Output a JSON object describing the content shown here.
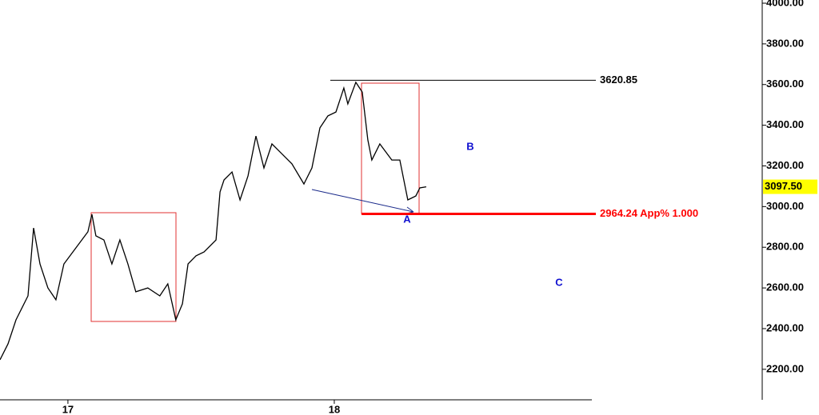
{
  "chart_data": {
    "type": "line",
    "series": [
      {
        "color": "#000000",
        "x": [
          16.745,
          16.775,
          16.805,
          16.85,
          16.871,
          16.895,
          16.925,
          16.955,
          16.985,
          17.03,
          17.075,
          17.09,
          17.105,
          17.135,
          17.165,
          17.195,
          17.225,
          17.255,
          17.3,
          17.345,
          17.375,
          17.405,
          17.43,
          17.451,
          17.481,
          17.511,
          17.556,
          17.571,
          17.586,
          17.616,
          17.646,
          17.676,
          17.706,
          17.736,
          17.766,
          17.796,
          17.841,
          17.886,
          17.916,
          17.946,
          17.976,
          18.006,
          18.036,
          18.051,
          18.081,
          18.105,
          18.126,
          18.141,
          18.171,
          18.216,
          18.246,
          18.276,
          18.306,
          18.321,
          18.345
        ],
        "values": [
          2247,
          2325,
          2443,
          2561,
          2895,
          2718,
          2600,
          2542,
          2718,
          2797,
          2876,
          2962,
          2856,
          2836,
          2718,
          2836,
          2718,
          2581,
          2600,
          2561,
          2620,
          2443,
          2522,
          2718,
          2758,
          2777,
          2836,
          3072,
          3131,
          3170,
          3033,
          3151,
          3347,
          3190,
          3308,
          3269,
          3210,
          3111,
          3190,
          3387,
          3446,
          3465,
          3583,
          3505,
          3611,
          3563,
          3328,
          3229,
          3308,
          3229,
          3229,
          3033,
          3052,
          3092,
          3097.5
        ]
      }
    ],
    "xlim": [
      16.745,
      18.967
    ],
    "xticks": [
      17,
      18
    ],
    "ylim": [
      2050,
      4015.7
    ],
    "yticks": [
      {
        "value": 2200,
        "label": "2200.00"
      },
      {
        "value": 2400,
        "label": "2400.00"
      },
      {
        "value": 2600,
        "label": "2600.00"
      },
      {
        "value": 2800,
        "label": "2800.00"
      },
      {
        "value": 3000,
        "label": "3000.00"
      },
      {
        "value": 3200,
        "label": "3200.00"
      },
      {
        "value": 3400,
        "label": "3400.00"
      },
      {
        "value": 3600,
        "label": "3600.00"
      },
      {
        "value": 3800,
        "label": "3800.00"
      },
      {
        "value": 4000,
        "label": "4000.00"
      }
    ],
    "levels": [
      {
        "value": 3620.85,
        "label": "3620.85",
        "color": "#000000"
      },
      {
        "value": 2964.24,
        "label": "2964.24 App% 1.000",
        "color": "#ff0000"
      }
    ],
    "last_price": {
      "value": 3097.5,
      "label": "3097.50"
    },
    "annotations": [
      "A",
      "B",
      "C"
    ]
  }
}
